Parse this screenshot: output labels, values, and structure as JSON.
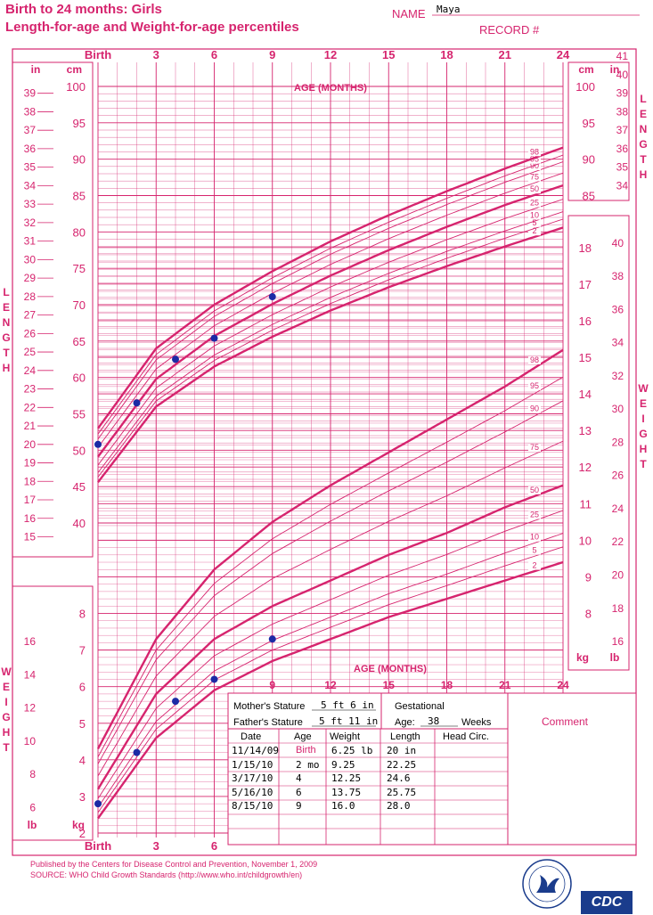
{
  "header": {
    "title_line1": "Birth to 24 months: Girls",
    "title_line2": "Length-for-age and Weight-for-age percentiles",
    "name_label": "NAME",
    "name_value": "Maya",
    "record_label": "RECORD #"
  },
  "colors": {
    "accent": "#d6246e",
    "point": "#1c2aa5",
    "text": "#000000"
  },
  "chart_data": {
    "type": "line",
    "title": "Birth to 24 months: Girls — Length-for-age and Weight-for-age percentiles",
    "x_axis": {
      "label": "AGE (MONTHS)",
      "range": [
        0,
        24
      ],
      "tick_labels": [
        "Birth",
        "3",
        "6",
        "9",
        "12",
        "15",
        "18",
        "21",
        "24"
      ]
    },
    "length_axis": {
      "cm_label": "cm",
      "in_label": "in",
      "cm_range": [
        45,
        100
      ],
      "cm_ticks": [
        "100",
        "95",
        "90",
        "85",
        "80",
        "75",
        "70",
        "65",
        "60",
        "55",
        "50",
        "45",
        "40"
      ],
      "in_range": [
        15,
        41
      ]
    },
    "weight_axis": {
      "kg_label": "kg",
      "lb_label": "lb",
      "kg_range": [
        2,
        18
      ],
      "lb_range": [
        2,
        40
      ]
    },
    "percentile_labels": [
      "2",
      "5",
      "10",
      "25",
      "50",
      "75",
      "90",
      "95",
      "98"
    ],
    "length_percentiles": [
      {
        "name": "98",
        "values": [
          [
            0,
            53.0
          ],
          [
            3,
            64.0
          ],
          [
            6,
            70.0
          ],
          [
            9,
            74.6
          ],
          [
            12,
            78.7
          ],
          [
            15,
            82.3
          ],
          [
            18,
            85.6
          ],
          [
            21,
            88.7
          ],
          [
            24,
            91.6
          ]
        ]
      },
      {
        "name": "50",
        "values": [
          [
            0,
            49.1
          ],
          [
            3,
            59.8
          ],
          [
            6,
            65.7
          ],
          [
            9,
            70.1
          ],
          [
            12,
            74.0
          ],
          [
            15,
            77.5
          ],
          [
            18,
            80.7
          ],
          [
            21,
            83.7
          ],
          [
            24,
            86.4
          ]
        ]
      },
      {
        "name": "2",
        "values": [
          [
            0,
            45.6
          ],
          [
            3,
            56.0
          ],
          [
            6,
            61.5
          ],
          [
            9,
            65.6
          ],
          [
            12,
            69.2
          ],
          [
            15,
            72.4
          ],
          [
            18,
            75.3
          ],
          [
            21,
            78.0
          ],
          [
            24,
            80.6
          ]
        ]
      }
    ],
    "weight_percentiles": [
      {
        "name": "98",
        "values": [
          [
            0,
            4.3
          ],
          [
            3,
            7.3
          ],
          [
            6,
            9.2
          ],
          [
            9,
            10.5
          ],
          [
            12,
            11.5
          ],
          [
            15,
            12.4
          ],
          [
            18,
            13.3
          ],
          [
            21,
            14.2
          ],
          [
            24,
            15.2
          ]
        ]
      },
      {
        "name": "50",
        "values": [
          [
            0,
            3.2
          ],
          [
            3,
            5.8
          ],
          [
            6,
            7.3
          ],
          [
            9,
            8.2
          ],
          [
            12,
            8.9
          ],
          [
            15,
            9.6
          ],
          [
            18,
            10.2
          ],
          [
            21,
            10.9
          ],
          [
            24,
            11.5
          ]
        ]
      },
      {
        "name": "2",
        "values": [
          [
            0,
            2.4
          ],
          [
            3,
            4.6
          ],
          [
            6,
            5.9
          ],
          [
            9,
            6.7
          ],
          [
            12,
            7.3
          ],
          [
            15,
            7.9
          ],
          [
            18,
            8.4
          ],
          [
            21,
            8.9
          ],
          [
            24,
            9.4
          ]
        ]
      }
    ],
    "patient_length_cm": [
      [
        0,
        50.8
      ],
      [
        2,
        56.5
      ],
      [
        4,
        62.5
      ],
      [
        6,
        65.4
      ],
      [
        9,
        71.1
      ]
    ],
    "patient_weight_kg": [
      [
        0,
        2.8
      ],
      [
        2,
        4.2
      ],
      [
        4,
        5.6
      ],
      [
        6,
        6.2
      ],
      [
        9,
        7.3
      ]
    ]
  },
  "info_box": {
    "mother_label": "Mother's Stature",
    "mother_value": "5 ft 6 in",
    "father_label": "Father's Stature",
    "father_value": "5 ft 11 in",
    "gestational_label": "Gestational",
    "age_label": "Age:",
    "age_value": "38",
    "weeks_label": "Weeks",
    "comment_label": "Comment",
    "columns": [
      "Date",
      "Age",
      "Weight",
      "Length",
      "Head Circ."
    ],
    "rows": [
      {
        "date": "11/14/09",
        "age": "Birth",
        "weight": "6.25 lb",
        "length": "20 in"
      },
      {
        "date": "1/15/10",
        "age": "2 mo",
        "weight": "9.25",
        "length": "22.25"
      },
      {
        "date": "3/17/10",
        "age": "4",
        "weight": "12.25",
        "length": "24.6"
      },
      {
        "date": "5/16/10",
        "age": "6",
        "weight": "13.75",
        "length": "25.75"
      },
      {
        "date": "8/15/10",
        "age": "9",
        "weight": "16.0",
        "length": "28.0"
      }
    ]
  },
  "footer": {
    "published": "Published by the Centers for Disease Control and Prevention, November 1, 2009",
    "source": "SOURCE:  WHO Child Growth Standards (http://www.who.int/childgrowth/en)",
    "logo_text": "CDC"
  }
}
